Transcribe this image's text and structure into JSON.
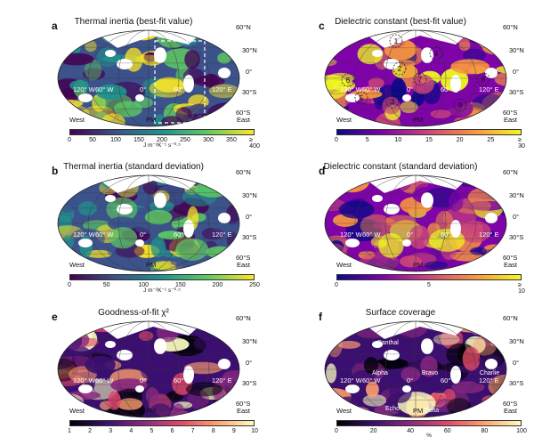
{
  "panels": [
    {
      "id": "a",
      "title": "Thermal inertia (best-fit value)",
      "palette": "viridis",
      "colorbar": {
        "ticks": [
          "0",
          "50",
          "100",
          "150",
          "200",
          "250",
          "300",
          "350",
          "≥ 400"
        ],
        "unit": "J m⁻²K⁻¹ s⁻⁰·⁵"
      }
    },
    {
      "id": "b",
      "title": "Thermal inertia (standard deviation)",
      "palette": "viridis",
      "colorbar": {
        "ticks": [
          "0",
          "50",
          "100",
          "150",
          "200",
          "250"
        ],
        "unit": "J m⁻²K⁻¹ s⁻⁰·⁵"
      }
    },
    {
      "id": "c",
      "title": "Dielectric constant (best-fit value)",
      "palette": "plasma",
      "colorbar": {
        "ticks": [
          "0",
          "5",
          "10",
          "15",
          "20",
          "25",
          "≥ 30"
        ],
        "unit": ""
      },
      "region_labels": [
        "1",
        "2",
        "3",
        "4",
        "5",
        "6",
        "7",
        "8",
        "9"
      ]
    },
    {
      "id": "d",
      "title": "Dielectric constant (standard deviation)",
      "palette": "plasma",
      "colorbar": {
        "ticks": [
          "0",
          "5",
          "≥ 10"
        ],
        "unit": ""
      }
    },
    {
      "id": "e",
      "title": "Goodness-of-fit χ²",
      "palette": "magma",
      "colorbar": {
        "ticks": [
          "1",
          "2",
          "3",
          "4",
          "5",
          "6",
          "7",
          "8",
          "9",
          "10"
        ],
        "unit": ""
      }
    },
    {
      "id": "f",
      "title": "Surface coverage",
      "palette": "magma",
      "colorbar": {
        "ticks": [
          "0",
          "20",
          "40",
          "60",
          "80",
          "100"
        ],
        "unit": "%"
      },
      "site_labels": [
        "Panthal",
        "Alpha",
        "Bravo",
        "Charlie",
        "Delta",
        "Echo"
      ]
    }
  ],
  "axes": {
    "lat_labels": [
      "60°N",
      "30°N",
      "0°",
      "30°S",
      "60°S"
    ],
    "lon_labels": [
      "120° W",
      "60° W",
      "0°",
      "60° E",
      "120° E"
    ],
    "west": "West",
    "east": "East",
    "pm": "PM"
  },
  "colors": {
    "viridis": [
      "#440154",
      "#3b528b",
      "#21918c",
      "#5ec962",
      "#fde725"
    ],
    "plasma": [
      "#0d0887",
      "#7e03a8",
      "#cc4778",
      "#f89540",
      "#f0f921"
    ],
    "magma": [
      "#000004",
      "#3b0f70",
      "#8c2981",
      "#de4968",
      "#fe9f6d",
      "#fcfdbf"
    ]
  }
}
